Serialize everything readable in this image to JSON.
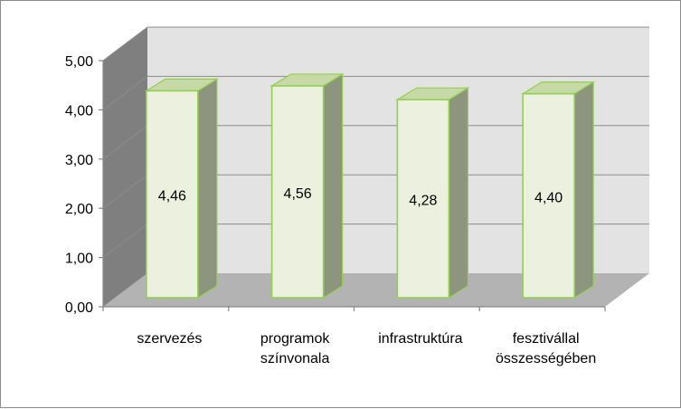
{
  "chart_data": {
    "type": "bar",
    "title": "",
    "xlabel": "",
    "ylabel": "",
    "categories": [
      [
        "szervezés"
      ],
      [
        "programok",
        "színvonala"
      ],
      [
        "infrastruktúra"
      ],
      [
        "fesztivállal",
        "összességében"
      ]
    ],
    "values": [
      4.46,
      4.56,
      4.28,
      4.4
    ],
    "value_labels": [
      "4,46",
      "4,56",
      "4,28",
      "4,40"
    ],
    "ylim": [
      0,
      5
    ],
    "yticks": [
      0,
      1,
      2,
      3,
      4,
      5
    ],
    "ytick_labels": [
      "0,00",
      "1,00",
      "2,00",
      "3,00",
      "4,00",
      "5,00"
    ],
    "grid": true,
    "legend": "none",
    "style": "3d-column",
    "colors": {
      "bar_front": "#ebf1de",
      "bar_side": "#8e957f",
      "bar_top": "#c6d9a6",
      "bar_edge": "#92d050",
      "wall": "#e3e3e3",
      "floor": "#b3b3b3",
      "gridline": "#8c8c8c"
    }
  }
}
